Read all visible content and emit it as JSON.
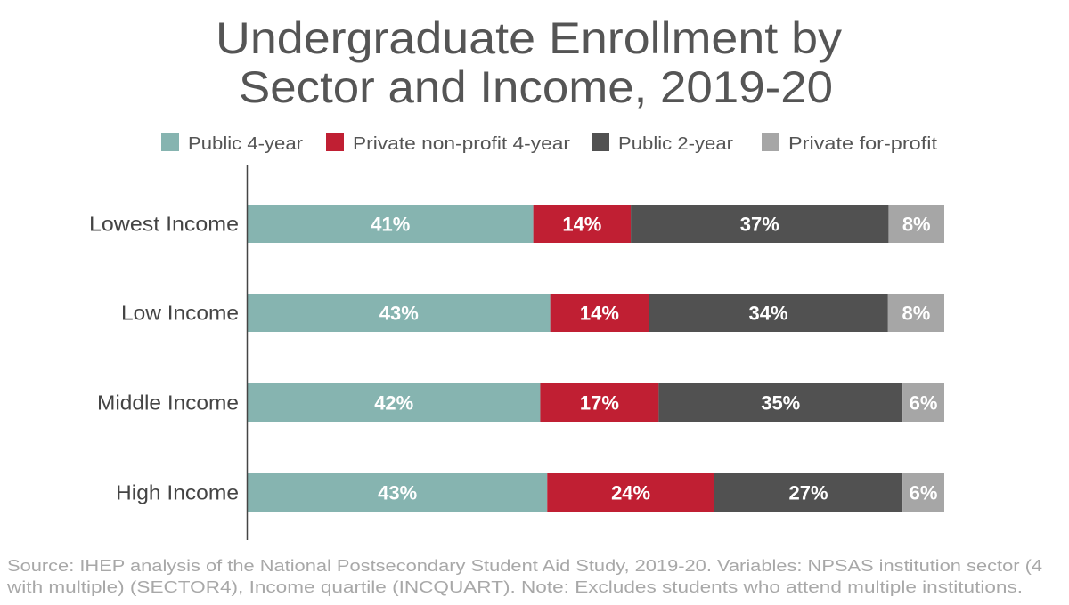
{
  "chart_data": {
    "type": "bar",
    "orientation": "horizontal",
    "stacked": true,
    "title": [
      "Undergraduate Enrollment by",
      "Sector and Income, 2019-20"
    ],
    "categories": [
      "Lowest Income",
      "Low Income",
      "Middle Income",
      "High Income"
    ],
    "series": [
      {
        "name": "Public 4-year",
        "color": "#86b4b0",
        "values": [
          41,
          43,
          42,
          43
        ]
      },
      {
        "name": "Private non-profit 4-year",
        "color": "#c01f33",
        "values": [
          14,
          14,
          17,
          24
        ]
      },
      {
        "name": "Public 2-year",
        "color": "#515151",
        "values": [
          37,
          34,
          35,
          27
        ]
      },
      {
        "name": "Private for-profit",
        "color": "#a6a6a6",
        "values": [
          8,
          8,
          6,
          6
        ]
      }
    ],
    "value_suffix": "%",
    "legend_position": "top",
    "grid": false,
    "xlim": [
      0,
      100
    ],
    "source": [
      "Source: IHEP analysis of the National Postsecondary Student Aid Study, 2019-20. Variables: NPSAS institution sector (4",
      "with multiple) (SECTOR4), Income quartile (INCQUART). Note: Excludes students who attend multiple institutions."
    ]
  }
}
